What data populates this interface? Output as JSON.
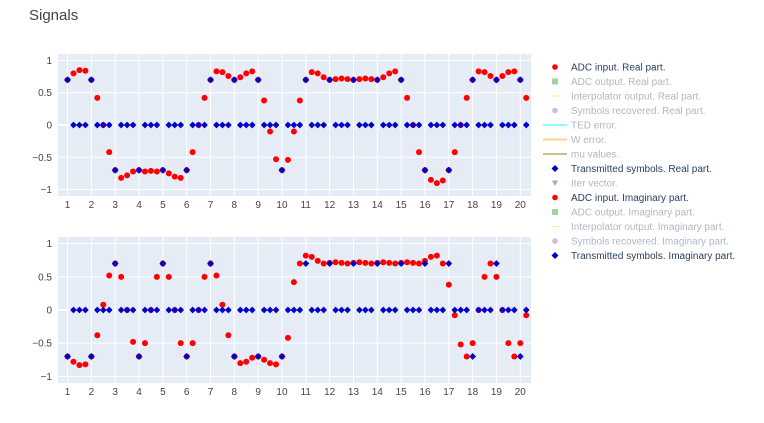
{
  "title": "Signals",
  "colors": {
    "plot_bg": "#e5ecf6",
    "grid": "#ffffff",
    "text": "#444444",
    "legend_visible": "#2a3f5f",
    "legend_hidden": "#b0b8c4"
  },
  "legend": [
    {
      "label": "ADC input. Real part.",
      "color": "#ff0000",
      "symbol": "circle",
      "visible": true
    },
    {
      "label": "ADC output. Real part.",
      "color": "#2ca02c",
      "symbol": "square",
      "visible": false
    },
    {
      "label": "Interpolator output. Real part.",
      "color": "#ffd700",
      "symbol": "line-ns",
      "visible": false
    },
    {
      "label": "Symbols recovered. Real part.",
      "color": "#9467bd",
      "symbol": "circle",
      "visible": false
    },
    {
      "label": "TED error.",
      "color": "#00ffff",
      "symbol": "line",
      "visible": false
    },
    {
      "label": "W error.",
      "color": "#ffa500",
      "symbol": "line",
      "visible": false
    },
    {
      "label": "mu values.",
      "color": "#8b7500",
      "symbol": "line",
      "visible": false
    },
    {
      "label": "Transmitted symbols. Real part.",
      "color": "#0000cd",
      "symbol": "diamond",
      "visible": true
    },
    {
      "label": "Iter vector.",
      "color": "#444444",
      "symbol": "triangle-down",
      "visible": false
    },
    {
      "label": "ADC input. Imaginary part.",
      "color": "#ff0000",
      "symbol": "circle",
      "visible": true
    },
    {
      "label": "ADC output. Imaginary part.",
      "color": "#2ca02c",
      "symbol": "square",
      "visible": false
    },
    {
      "label": "Interpolator output. Imaginary part.",
      "color": "#ffd700",
      "symbol": "line-ns",
      "visible": false
    },
    {
      "label": "Symbols recovered. Imaginary part.",
      "color": "#9467bd",
      "symbol": "circle",
      "visible": false
    },
    {
      "label": "Transmitted symbols. Imaginary part.",
      "color": "#0000cd",
      "symbol": "diamond",
      "visible": true
    }
  ],
  "chart_data": [
    {
      "type": "scatter",
      "panel": "top",
      "xlim": [
        0.6,
        20.45
      ],
      "ylim": [
        -1.1,
        1.1
      ],
      "xticks": [
        "1",
        "2",
        "3",
        "4",
        "5",
        "6",
        "7",
        "8",
        "9",
        "10",
        "11",
        "12",
        "13",
        "14",
        "15",
        "16",
        "17",
        "18",
        "19",
        "20"
      ],
      "yticks": [
        "−1",
        "−0.5",
        "0",
        "0.5",
        "1"
      ],
      "ytick_values": [
        -1,
        -0.5,
        0,
        0.5,
        1
      ],
      "grid": true,
      "series": [
        {
          "name": "ADC input. Real part.",
          "marker": "circle",
          "color": "#ff0000",
          "x": [
            1,
            1.25,
            1.5,
            1.75,
            2,
            2.25,
            2.5,
            2.75,
            3,
            3.25,
            3.5,
            3.75,
            4,
            4.25,
            4.5,
            4.75,
            5,
            5.25,
            5.5,
            5.75,
            6,
            6.25,
            6.5,
            6.75,
            7,
            7.25,
            7.5,
            7.75,
            8,
            8.25,
            8.5,
            8.75,
            9,
            9.25,
            9.5,
            9.75,
            10,
            10.25,
            10.5,
            10.75,
            11,
            11.25,
            11.5,
            11.75,
            12,
            12.25,
            12.5,
            12.75,
            13,
            13.25,
            13.5,
            13.75,
            14,
            14.25,
            14.5,
            14.75,
            15,
            15.25,
            15.5,
            15.75,
            16,
            16.25,
            16.5,
            16.75,
            17,
            17.25,
            17.5,
            17.75,
            18,
            18.25,
            18.5,
            18.75,
            19,
            19.25,
            19.5,
            19.75,
            20,
            20.25
          ],
          "y": [
            0.7,
            0.8,
            0.85,
            0.84,
            0.7,
            0.42,
            0,
            -0.42,
            -0.7,
            -0.82,
            -0.78,
            -0.72,
            -0.7,
            -0.72,
            -0.71,
            -0.72,
            -0.7,
            -0.75,
            -0.8,
            -0.82,
            -0.7,
            -0.42,
            0,
            0.42,
            0.7,
            0.83,
            0.82,
            0.76,
            0.7,
            0.74,
            0.8,
            0.83,
            0.7,
            0.38,
            -0.1,
            -0.53,
            -0.7,
            -0.54,
            -0.1,
            0.38,
            0.7,
            0.82,
            0.8,
            0.74,
            0.7,
            0.71,
            0.72,
            0.71,
            0.7,
            0.71,
            0.72,
            0.71,
            0.7,
            0.74,
            0.8,
            0.83,
            0.7,
            0.42,
            0,
            -0.42,
            -0.7,
            -0.85,
            -0.9,
            -0.86,
            -0.7,
            -0.42,
            0,
            0.42,
            0.7,
            0.83,
            0.82,
            0.76,
            0.7,
            0.76,
            0.82,
            0.83,
            0.7,
            0.42
          ]
        },
        {
          "name": "Transmitted symbols. Real part.",
          "marker": "diamond",
          "color": "#0000cd",
          "x": [
            1,
            1.25,
            1.5,
            1.75,
            2,
            2.25,
            2.5,
            2.75,
            3,
            3.25,
            3.5,
            3.75,
            4,
            4.25,
            4.5,
            4.75,
            5,
            5.25,
            5.5,
            5.75,
            6,
            6.25,
            6.5,
            6.75,
            7,
            7.25,
            7.5,
            7.75,
            8,
            8.25,
            8.5,
            8.75,
            9,
            9.25,
            9.5,
            9.75,
            10,
            10.25,
            10.5,
            10.75,
            11,
            11.25,
            11.5,
            11.75,
            12,
            12.25,
            12.5,
            12.75,
            13,
            13.25,
            13.5,
            13.75,
            14,
            14.25,
            14.5,
            14.75,
            15,
            15.25,
            15.5,
            15.75,
            16,
            16.25,
            16.5,
            16.75,
            17,
            17.25,
            17.5,
            17.75,
            18,
            18.25,
            18.5,
            18.75,
            19,
            19.25,
            19.5,
            19.75,
            20,
            20.25
          ],
          "y": [
            0.7,
            0,
            0,
            0,
            0.7,
            0,
            0,
            0,
            -0.7,
            0,
            0,
            0,
            -0.7,
            0,
            0,
            0,
            -0.7,
            0,
            0,
            0,
            -0.7,
            0,
            0,
            0,
            0.7,
            0,
            0,
            0,
            0.7,
            0,
            0,
            0,
            0.7,
            0,
            0,
            0,
            -0.7,
            0,
            0,
            0,
            0.7,
            0,
            0,
            0,
            0.7,
            0,
            0,
            0,
            0.7,
            0,
            0,
            0,
            0.7,
            0,
            0,
            0,
            0.7,
            0,
            0,
            0,
            -0.7,
            0,
            0,
            0,
            -0.7,
            0,
            0,
            0,
            0.7,
            0,
            0,
            0,
            0.7,
            0,
            0,
            0,
            0.7,
            0
          ]
        }
      ]
    },
    {
      "type": "scatter",
      "panel": "bottom",
      "xlim": [
        0.6,
        20.45
      ],
      "ylim": [
        -1.1,
        1.1
      ],
      "xticks": [
        "1",
        "2",
        "3",
        "4",
        "5",
        "6",
        "7",
        "8",
        "9",
        "10",
        "11",
        "12",
        "13",
        "14",
        "15",
        "16",
        "17",
        "18",
        "19",
        "20"
      ],
      "yticks": [
        "−1",
        "−0.5",
        "0",
        "0.5",
        "1"
      ],
      "ytick_values": [
        -1,
        -0.5,
        0,
        0.5,
        1
      ],
      "grid": true,
      "series": [
        {
          "name": "ADC input. Imaginary part.",
          "marker": "circle",
          "color": "#ff0000",
          "x": [
            1,
            1.25,
            1.5,
            1.75,
            2,
            2.25,
            2.5,
            2.75,
            3,
            3.25,
            3.5,
            3.75,
            4,
            4.25,
            4.5,
            4.75,
            5,
            5.25,
            5.5,
            5.75,
            6,
            6.25,
            6.5,
            6.75,
            7,
            7.25,
            7.5,
            7.75,
            8,
            8.25,
            8.5,
            8.75,
            9,
            9.25,
            9.5,
            9.75,
            10,
            10.25,
            10.5,
            10.75,
            11,
            11.25,
            11.5,
            11.75,
            12,
            12.25,
            12.5,
            12.75,
            13,
            13.25,
            13.5,
            13.75,
            14,
            14.25,
            14.5,
            14.75,
            15,
            15.25,
            15.5,
            15.75,
            16,
            16.25,
            16.5,
            16.75,
            17,
            17.25,
            17.5,
            17.75,
            18,
            18.25,
            18.5,
            18.75,
            19,
            19.25,
            19.5,
            19.75,
            20,
            20.25
          ],
          "y": [
            -0.7,
            -0.78,
            -0.83,
            -0.82,
            -0.7,
            -0.38,
            0.08,
            0.52,
            0.7,
            0.5,
            0,
            -0.48,
            -0.7,
            -0.5,
            0,
            0.5,
            0.7,
            0.5,
            0,
            -0.5,
            -0.7,
            -0.5,
            0,
            0.5,
            0.7,
            0.52,
            0.08,
            -0.38,
            -0.7,
            -0.8,
            -0.78,
            -0.72,
            -0.7,
            -0.75,
            -0.8,
            -0.82,
            -0.7,
            -0.42,
            0.42,
            0.7,
            0.82,
            0.8,
            0.74,
            0.7,
            0.71,
            0.72,
            0.71,
            0.7,
            0.71,
            0.72,
            0.71,
            0.7,
            0.71,
            0.72,
            0.71,
            0.7,
            0.71,
            0.72,
            0.71,
            0.7,
            0.74,
            0.8,
            0.82,
            0.7,
            0.38,
            -0.08,
            -0.52,
            -0.7,
            -0.5,
            0,
            0.5,
            0.7,
            0.5,
            0,
            -0.5,
            -0.7,
            -0.5,
            -0.08
          ]
        },
        {
          "name": "Transmitted symbols. Imaginary part.",
          "marker": "diamond",
          "color": "#0000cd",
          "x": [
            1,
            1.25,
            1.5,
            1.75,
            2,
            2.25,
            2.5,
            2.75,
            3,
            3.25,
            3.5,
            3.75,
            4,
            4.25,
            4.5,
            4.75,
            5,
            5.25,
            5.5,
            5.75,
            6,
            6.25,
            6.5,
            6.75,
            7,
            7.25,
            7.5,
            7.75,
            8,
            8.25,
            8.5,
            8.75,
            9,
            9.25,
            9.5,
            9.75,
            10,
            10.25,
            10.5,
            10.75,
            11,
            11.25,
            11.5,
            11.75,
            12,
            12.25,
            12.5,
            12.75,
            13,
            13.25,
            13.5,
            13.75,
            14,
            14.25,
            14.5,
            14.75,
            15,
            15.25,
            15.5,
            15.75,
            16,
            16.25,
            16.5,
            16.75,
            17,
            17.25,
            17.5,
            17.75,
            18,
            18.25,
            18.5,
            18.75,
            19,
            19.25,
            19.5,
            19.75,
            20,
            20.25
          ],
          "y": [
            -0.7,
            0,
            0,
            0,
            -0.7,
            0,
            0,
            0,
            0.7,
            0,
            0,
            0,
            -0.7,
            0,
            0,
            0,
            0.7,
            0,
            0,
            0,
            -0.7,
            0,
            0,
            0,
            0.7,
            0,
            0,
            0,
            -0.7,
            0,
            0,
            0,
            -0.7,
            0,
            0,
            0,
            -0.7,
            0,
            0,
            0,
            0.7,
            0,
            0,
            0,
            0.7,
            0,
            0,
            0,
            0.7,
            0,
            0,
            0,
            0.7,
            0,
            0,
            0,
            0.7,
            0,
            0,
            0,
            0.7,
            0,
            0,
            0,
            0.7,
            0,
            0,
            0,
            -0.7,
            0,
            0,
            0,
            0.7,
            0,
            0,
            0,
            -0.7,
            0
          ]
        }
      ]
    }
  ]
}
